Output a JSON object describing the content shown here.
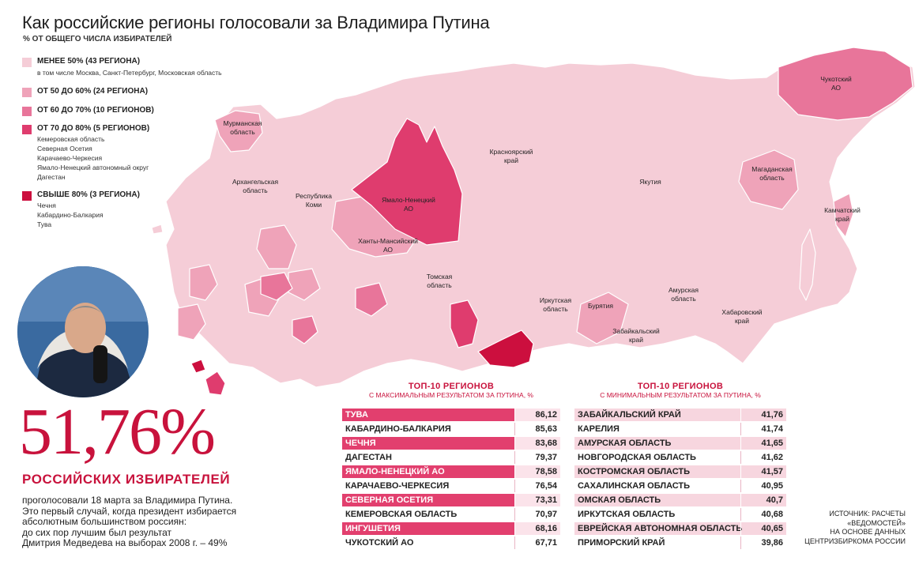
{
  "title": "Как российские регионы голосовали за Владимира Путина",
  "subtitle": "% ОТ ОБЩЕГО ЧИСЛА ИЗБИРАТЕЛЕЙ",
  "colors": {
    "lt50": "#f5cdd7",
    "50to60": "#efa3b9",
    "60to70": "#e8759a",
    "70to80": "#df3c6e",
    "gt80": "#cc0f3e",
    "accent": "#c8123c"
  },
  "legend": [
    {
      "label": "МЕНЕЕ 50% (43 РЕГИОНА)",
      "sub": [
        "в том числе Москва, Санкт-Петербург, Московская область"
      ]
    },
    {
      "label": "ОТ 50 ДО 60% (24 РЕГИОНА)",
      "sub": []
    },
    {
      "label": "ОТ 60 ДО 70% (10 РЕГИОНОВ)",
      "sub": []
    },
    {
      "label": "ОТ 70 ДО 80% (5 РЕГИОНОВ)",
      "sub": [
        "Кемеровская область",
        "Северная Осетия",
        "Карачаево-Черкесия",
        "Ямало-Ненецкий автономный округ",
        "Дагестан"
      ]
    },
    {
      "label": "СВЫШЕ 80% (3 РЕГИОНА)",
      "sub": [
        "Чечня",
        "Кабардино-Балкария",
        "Тува"
      ]
    }
  ],
  "map_labels": {
    "murmansk": [
      "Мурманская",
      "область"
    ],
    "arkhangelsk": [
      "Архангельская",
      "область"
    ],
    "komi": [
      "Республика",
      "Коми"
    ],
    "yanao": [
      "Ямало-Ненецкий",
      "АО"
    ],
    "khmao": [
      "Ханты-Мансийский",
      "АО"
    ],
    "krasnoyarsk": [
      "Красноярский",
      "край"
    ],
    "tomsk": [
      "Томская",
      "область"
    ],
    "irkutsk": [
      "Иркутская",
      "область"
    ],
    "buryatia": [
      "Бурятия"
    ],
    "zabaikalsky": [
      "Забайкальский",
      "край"
    ],
    "yakutia": [
      "Якутия"
    ],
    "chukotka": [
      "Чукотский",
      "АО"
    ],
    "magadan": [
      "Магаданская",
      "область"
    ],
    "kamchatka": [
      "Камчатский",
      "край"
    ],
    "amur": [
      "Амурская",
      "область"
    ],
    "khabarovsk": [
      "Хабаровский",
      "край"
    ]
  },
  "headline": {
    "value": "51,76%",
    "caption": "РОССИЙСКИХ ИЗБИРАТЕЛЕЙ",
    "text": [
      "проголосовали 18 марта за Владимира Путина.",
      "Это первый случай, когда президент избирается",
      "абсолютным большинством россиян:",
      "до сих пор лучшим был результат",
      "Дмитрия Медведева на выборах 2008 г. – 49%"
    ]
  },
  "chart_data": [
    {
      "type": "table",
      "title": "ТОП-10 РЕГИОНОВ",
      "subtitle": "С МАКСИМАЛЬНЫМ РЕЗУЛЬТАТОМ ЗА ПУТИНА, %",
      "rows": [
        {
          "region": "ТУВА",
          "value": "86,12"
        },
        {
          "region": "КАБАРДИНО-БАЛКАРИЯ",
          "value": "85,63"
        },
        {
          "region": "ЧЕЧНЯ",
          "value": "83,68"
        },
        {
          "region": "ДАГЕСТАН",
          "value": "79,37"
        },
        {
          "region": "ЯМАЛО-НЕНЕЦКИЙ АО",
          "value": "78,58"
        },
        {
          "region": "КАРАЧАЕВО-ЧЕРКЕСИЯ",
          "value": "76,54"
        },
        {
          "region": "СЕВЕРНАЯ ОСЕТИЯ",
          "value": "73,31"
        },
        {
          "region": "КЕМЕРОВСКАЯ ОБЛАСТЬ",
          "value": "70,97"
        },
        {
          "region": "ИНГУШЕТИЯ",
          "value": "68,16"
        },
        {
          "region": "ЧУКОТСКИЙ АО",
          "value": "67,71"
        }
      ]
    },
    {
      "type": "table",
      "title": "ТОП-10 РЕГИОНОВ",
      "subtitle": "С МИНИМАЛЬНЫМ РЕЗУЛЬТАТОМ ЗА ПУТИНА, %",
      "rows": [
        {
          "region": "ЗАБАЙКАЛЬСКИЙ КРАЙ",
          "value": "41,76"
        },
        {
          "region": "КАРЕЛИЯ",
          "value": "41,74"
        },
        {
          "region": "АМУРСКАЯ ОБЛАСТЬ",
          "value": "41,65"
        },
        {
          "region": "НОВГОРОДСКАЯ ОБЛАСТЬ",
          "value": "41,62"
        },
        {
          "region": "КОСТРОМСКАЯ ОБЛАСТЬ",
          "value": "41,57"
        },
        {
          "region": "САХАЛИНСКАЯ ОБЛАСТЬ",
          "value": "40,95"
        },
        {
          "region": "ОМСКАЯ ОБЛАСТЬ",
          "value": "40,7"
        },
        {
          "region": "ИРКУТСКАЯ ОБЛАСТЬ",
          "value": "40,68"
        },
        {
          "region": "ЕВРЕЙСКАЯ АВТОНОМНАЯ ОБЛАСТЬ",
          "value": "40,65"
        },
        {
          "region": "ПРИМОРСКИЙ КРАЙ",
          "value": "39,86"
        }
      ]
    }
  ],
  "source": [
    "ИСТОЧНИК: РАСЧЕТЫ",
    "«ВЕДОМОСТЕЙ»",
    "НА ОСНОВЕ ДАННЫХ",
    "ЦЕНТРИЗБИРКОМА РОССИИ"
  ]
}
